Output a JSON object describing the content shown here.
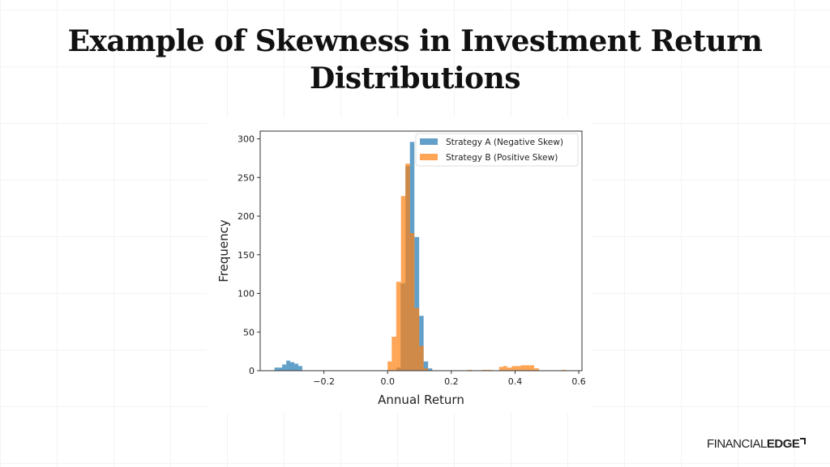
{
  "slide": {
    "title": "Example of Skewness in Investment Return Distributions",
    "logo": {
      "text_light": "FINANCIAL",
      "text_bold": "EDGE"
    }
  },
  "chart_data": {
    "type": "histogram",
    "title": "",
    "xlabel": "Annual Return",
    "ylabel": "Frequency",
    "xlim": [
      -0.4,
      0.61
    ],
    "ylim": [
      0,
      310
    ],
    "xticks": [
      -0.2,
      0.0,
      0.2,
      0.4,
      0.6
    ],
    "xtick_labels": [
      "−0.2",
      "0.0",
      "0.2",
      "0.4",
      "0.6"
    ],
    "yticks": [
      0,
      50,
      100,
      150,
      200,
      250,
      300
    ],
    "ytick_labels": [
      "0",
      "50",
      "100",
      "150",
      "200",
      "250",
      "300"
    ],
    "grid": false,
    "legend_position": "top-right",
    "series": [
      {
        "name": "Strategy A (Negative Skew)",
        "color": "#1f77b4",
        "bins": [
          [
            -0.355,
            -0.343,
            4
          ],
          [
            -0.343,
            -0.331,
            4
          ],
          [
            -0.331,
            -0.318,
            8
          ],
          [
            -0.318,
            -0.306,
            13
          ],
          [
            -0.306,
            -0.293,
            11
          ],
          [
            -0.293,
            -0.28,
            9
          ],
          [
            -0.28,
            -0.268,
            6
          ],
          [
            0.027,
            0.041,
            4
          ],
          [
            0.041,
            0.056,
            113
          ],
          [
            0.056,
            0.07,
            265
          ],
          [
            0.07,
            0.084,
            296
          ],
          [
            0.084,
            0.099,
            173
          ],
          [
            0.099,
            0.113,
            71
          ],
          [
            0.113,
            0.127,
            12
          ],
          [
            0.127,
            0.14,
            3
          ]
        ]
      },
      {
        "name": "Strategy B (Positive Skew)",
        "color": "#ff7f0e",
        "bins": [
          [
            0.0,
            0.013,
            12
          ],
          [
            0.013,
            0.027,
            44
          ],
          [
            0.027,
            0.042,
            115
          ],
          [
            0.042,
            0.056,
            226
          ],
          [
            0.056,
            0.07,
            268
          ],
          [
            0.07,
            0.084,
            178
          ],
          [
            0.084,
            0.099,
            81
          ],
          [
            0.099,
            0.113,
            32
          ],
          [
            0.113,
            0.127,
            3
          ],
          [
            0.25,
            0.265,
            1
          ],
          [
            0.295,
            0.31,
            1
          ],
          [
            0.31,
            0.33,
            1
          ],
          [
            0.35,
            0.363,
            5
          ],
          [
            0.363,
            0.375,
            6
          ],
          [
            0.375,
            0.39,
            4
          ],
          [
            0.39,
            0.418,
            6
          ],
          [
            0.418,
            0.46,
            7
          ],
          [
            0.46,
            0.475,
            3
          ],
          [
            0.545,
            0.56,
            1
          ]
        ]
      }
    ]
  }
}
